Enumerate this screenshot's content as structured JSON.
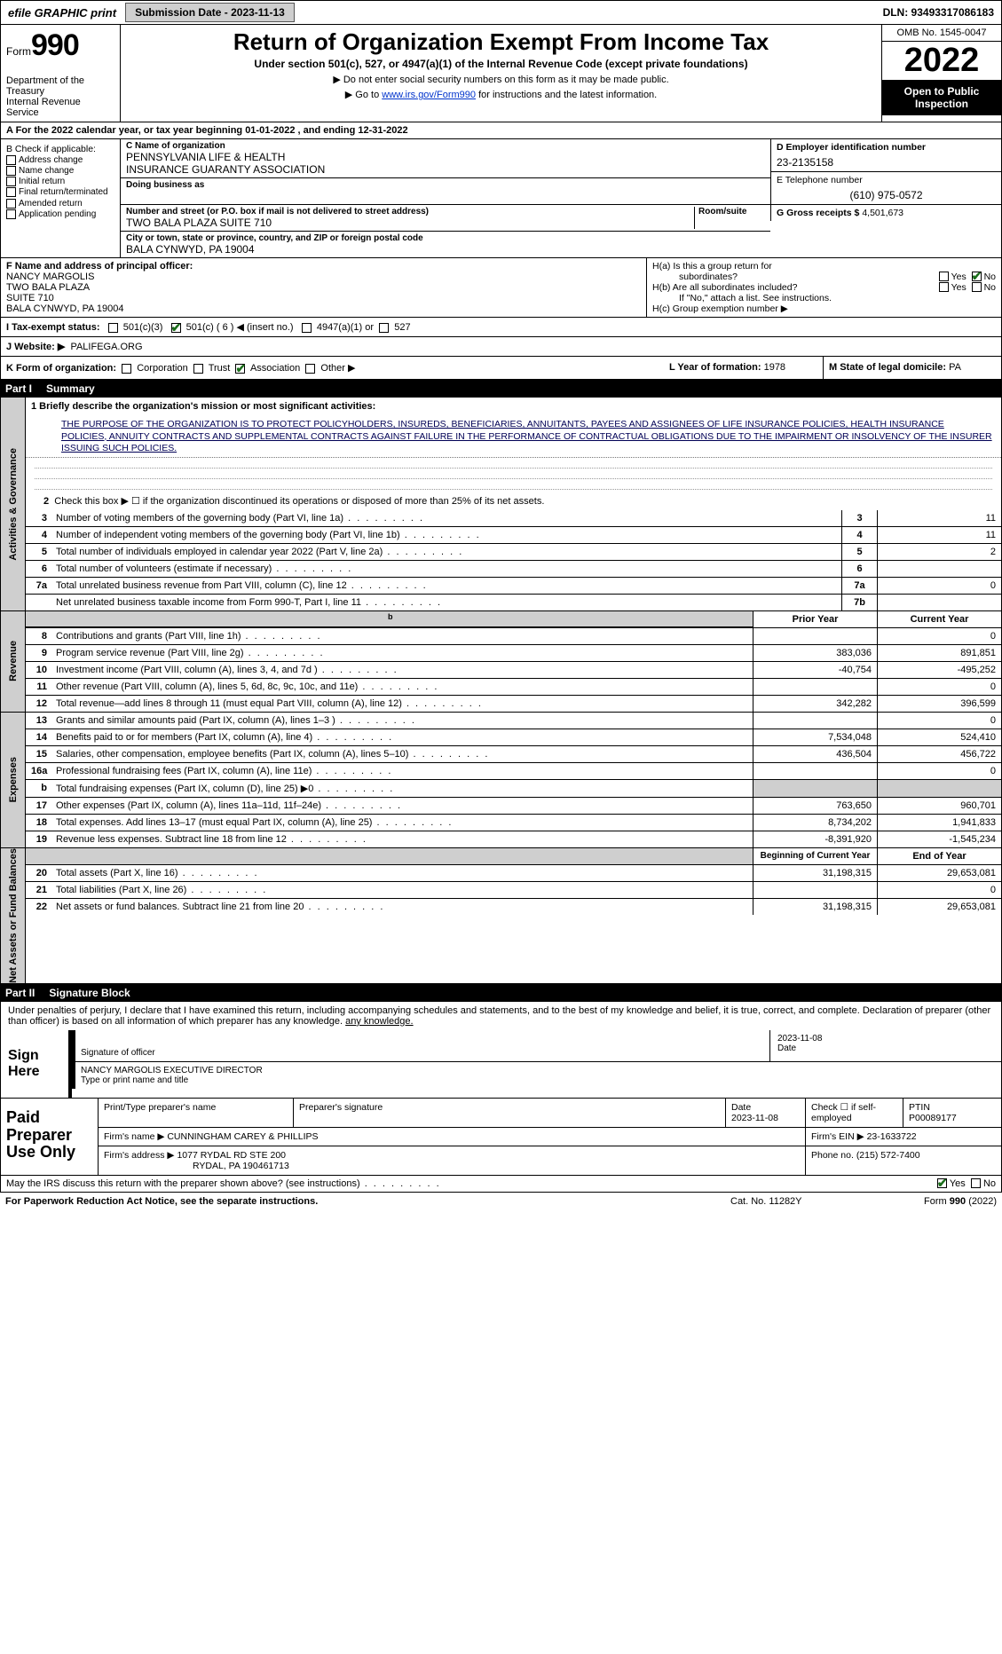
{
  "colors": {
    "shade": "#cfcfcf",
    "accent_blue": "#0033cc",
    "check_green": "#1a6e1a"
  },
  "topbar": {
    "efile": "efile GRAPHIC print",
    "submission": "Submission Date - 2023-11-13",
    "dln": "DLN: 93493317086183"
  },
  "header": {
    "form_word": "Form",
    "form_no": "990",
    "title": "Return of Organization Exempt From Income Tax",
    "sub": "Under section 501(c), 527, or 4947(a)(1) of the Internal Revenue Code (except private foundations)",
    "note1": "▶ Do not enter social security numbers on this form as it may be made public.",
    "note2_pre": "▶ Go to ",
    "note2_link": "www.irs.gov/Form990",
    "note2_post": " for instructions and the latest information.",
    "dept": "Department of the Treasury",
    "irs": "Internal Revenue Service",
    "omb": "OMB No. 1545-0047",
    "year": "2022",
    "open": "Open to Public Inspection"
  },
  "rowA": "A For the 2022 calendar year, or tax year beginning 01-01-2022    , and ending 12-31-2022",
  "colB": {
    "hdr": "B Check if applicable:",
    "items": [
      "Address change",
      "Name change",
      "Initial return",
      "Final return/terminated",
      "Amended return",
      "Application pending"
    ]
  },
  "colC": {
    "name_lbl": "C Name of organization",
    "name": "PENNSYLVANIA LIFE & HEALTH",
    "name2": "INSURANCE GUARANTY ASSOCIATION",
    "dba_lbl": "Doing business as",
    "addr_lbl": "Number and street (or P.O. box if mail is not delivered to street address)",
    "addr": "TWO BALA PLAZA SUITE 710",
    "room_lbl": "Room/suite",
    "city_lbl": "City or town, state or province, country, and ZIP or foreign postal code",
    "city": "BALA CYNWYD, PA  19004"
  },
  "colD": {
    "ein_lbl": "D Employer identification number",
    "ein": "23-2135158",
    "phone_lbl": "E Telephone number",
    "phone": "(610) 975-0572",
    "gross_lbl": "G Gross receipts $",
    "gross": "4,501,673"
  },
  "officer": {
    "lbl": "F  Name and address of principal officer:",
    "name": "NANCY MARGOLIS",
    "l1": "TWO BALA PLAZA",
    "l2": "SUITE 710",
    "l3": "BALA CYNWYD, PA  19004"
  },
  "h": {
    "a": "H(a)  Is this a group return for",
    "a2": "subordinates?",
    "b": "H(b)  Are all subordinates included?",
    "b2": "If \"No,\" attach a list. See instructions.",
    "c": "H(c)  Group exemption number ▶",
    "yes": "Yes",
    "no": "No"
  },
  "rowI": {
    "lbl": "I   Tax-exempt status:",
    "o1": "501(c)(3)",
    "o2": "501(c) ( 6 ) ◀ (insert no.)",
    "o3": "4947(a)(1) or",
    "o4": "527"
  },
  "rowJ": {
    "lbl": "J   Website: ▶",
    "val": "PALIFEGA.ORG"
  },
  "rowK": {
    "lbl": "K Form of organization:",
    "opts": [
      "Corporation",
      "Trust",
      "Association",
      "Other ▶"
    ],
    "checked_idx": 2,
    "l_lbl": "L Year of formation:",
    "l_val": "1978",
    "m_lbl": "M State of legal domicile:",
    "m_val": "PA"
  },
  "part1": {
    "num": "Part I",
    "title": "Summary"
  },
  "gov": {
    "label": "Activities & Governance",
    "mission_lbl": "1   Briefly describe the organization's mission or most significant activities:",
    "mission": "THE PURPOSE OF THE ORGANIZATION IS TO PROTECT POLICYHOLDERS, INSUREDS, BENEFICIARIES, ANNUITANTS, PAYEES AND ASSIGNEES OF LIFE INSURANCE POLICIES, HEALTH INSURANCE POLICIES, ANNUITY CONTRACTS AND SUPPLEMENTAL CONTRACTS AGAINST FAILURE IN THE PERFORMANCE OF CONTRACTUAL OBLIGATIONS DUE TO THE IMPAIRMENT OR INSOLVENCY OF THE INSURER ISSUING SUCH POLICIES.",
    "line2": "Check this box ▶ ☐  if the organization discontinued its operations or disposed of more than 25% of its net assets.",
    "rows": [
      {
        "n": "3",
        "d": "Number of voting members of the governing body (Part VI, line 1a)",
        "box": "3",
        "v": "11"
      },
      {
        "n": "4",
        "d": "Number of independent voting members of the governing body (Part VI, line 1b)",
        "box": "4",
        "v": "11"
      },
      {
        "n": "5",
        "d": "Total number of individuals employed in calendar year 2022 (Part V, line 2a)",
        "box": "5",
        "v": "2"
      },
      {
        "n": "6",
        "d": "Total number of volunteers (estimate if necessary)",
        "box": "6",
        "v": ""
      },
      {
        "n": "7a",
        "d": "Total unrelated business revenue from Part VIII, column (C), line 12",
        "box": "7a",
        "v": "0"
      },
      {
        "n": "",
        "d": "Net unrelated business taxable income from Form 990-T, Part I, line 11",
        "box": "7b",
        "v": ""
      }
    ]
  },
  "hdr2": {
    "prior": "Prior Year",
    "current": "Current Year"
  },
  "rev": {
    "label": "Revenue",
    "rows": [
      {
        "n": "8",
        "d": "Contributions and grants (Part VIII, line 1h)",
        "p": "",
        "c": "0"
      },
      {
        "n": "9",
        "d": "Program service revenue (Part VIII, line 2g)",
        "p": "383,036",
        "c": "891,851"
      },
      {
        "n": "10",
        "d": "Investment income (Part VIII, column (A), lines 3, 4, and 7d )",
        "p": "-40,754",
        "c": "-495,252"
      },
      {
        "n": "11",
        "d": "Other revenue (Part VIII, column (A), lines 5, 6d, 8c, 9c, 10c, and 11e)",
        "p": "",
        "c": "0"
      },
      {
        "n": "12",
        "d": "Total revenue—add lines 8 through 11 (must equal Part VIII, column (A), line 12)",
        "p": "342,282",
        "c": "396,599"
      }
    ]
  },
  "exp": {
    "label": "Expenses",
    "rows": [
      {
        "n": "13",
        "d": "Grants and similar amounts paid (Part IX, column (A), lines 1–3 )",
        "p": "",
        "c": "0"
      },
      {
        "n": "14",
        "d": "Benefits paid to or for members (Part IX, column (A), line 4)",
        "p": "7,534,048",
        "c": "524,410"
      },
      {
        "n": "15",
        "d": "Salaries, other compensation, employee benefits (Part IX, column (A), lines 5–10)",
        "p": "436,504",
        "c": "456,722"
      },
      {
        "n": "16a",
        "d": "Professional fundraising fees (Part IX, column (A), line 11e)",
        "p": "",
        "c": "0"
      },
      {
        "n": "b",
        "d": "Total fundraising expenses (Part IX, column (D), line 25) ▶0",
        "p": "shade",
        "c": "shade"
      },
      {
        "n": "17",
        "d": "Other expenses (Part IX, column (A), lines 11a–11d, 11f–24e)",
        "p": "763,650",
        "c": "960,701"
      },
      {
        "n": "18",
        "d": "Total expenses. Add lines 13–17 (must equal Part IX, column (A), line 25)",
        "p": "8,734,202",
        "c": "1,941,833"
      },
      {
        "n": "19",
        "d": "Revenue less expenses. Subtract line 18 from line 12",
        "p": "-8,391,920",
        "c": "-1,545,234"
      }
    ]
  },
  "hdr3": {
    "prior": "Beginning of Current Year",
    "current": "End of Year"
  },
  "net": {
    "label": "Net Assets or Fund Balances",
    "rows": [
      {
        "n": "20",
        "d": "Total assets (Part X, line 16)",
        "p": "31,198,315",
        "c": "29,653,081"
      },
      {
        "n": "21",
        "d": "Total liabilities (Part X, line 26)",
        "p": "",
        "c": "0"
      },
      {
        "n": "22",
        "d": "Net assets or fund balances. Subtract line 21 from line 20",
        "p": "31,198,315",
        "c": "29,653,081"
      }
    ]
  },
  "part2": {
    "num": "Part II",
    "title": "Signature Block"
  },
  "sig": {
    "decl": "Under penalties of perjury, I declare that I have examined this return, including accompanying schedules and statements, and to the best of my knowledge and belief, it is true, correct, and complete. Declaration of preparer (other than officer) is based on all information of which preparer has any knowledge.",
    "here": "Sign Here",
    "sig_lbl": "Signature of officer",
    "date": "2023-11-08",
    "date_lbl": "Date",
    "name": "NANCY MARGOLIS  EXECUTIVE DIRECTOR",
    "name_lbl": "Type or print name and title"
  },
  "prep": {
    "hdr": "Paid Preparer Use Only",
    "c1": "Print/Type preparer's name",
    "c2": "Preparer's signature",
    "c3_lbl": "Date",
    "c3": "2023-11-08",
    "c4": "Check ☐ if self-employed",
    "c5_lbl": "PTIN",
    "c5": "P00089177",
    "firm_lbl": "Firm's name    ▶",
    "firm": "CUNNINGHAM CAREY & PHILLIPS",
    "ein_lbl": "Firm's EIN ▶",
    "ein": "23-1633722",
    "addr_lbl": "Firm's address ▶",
    "addr1": "1077 RYDAL RD STE 200",
    "addr2": "RYDAL, PA  190461713",
    "phone_lbl": "Phone no.",
    "phone": "(215) 572-7400"
  },
  "discuss": {
    "q": "May the IRS discuss this return with the preparer shown above? (see instructions)",
    "yes": "Yes",
    "no": "No"
  },
  "footer": {
    "l": "For Paperwork Reduction Act Notice, see the separate instructions.",
    "m": "Cat. No. 11282Y",
    "r": "Form 990 (2022)"
  }
}
